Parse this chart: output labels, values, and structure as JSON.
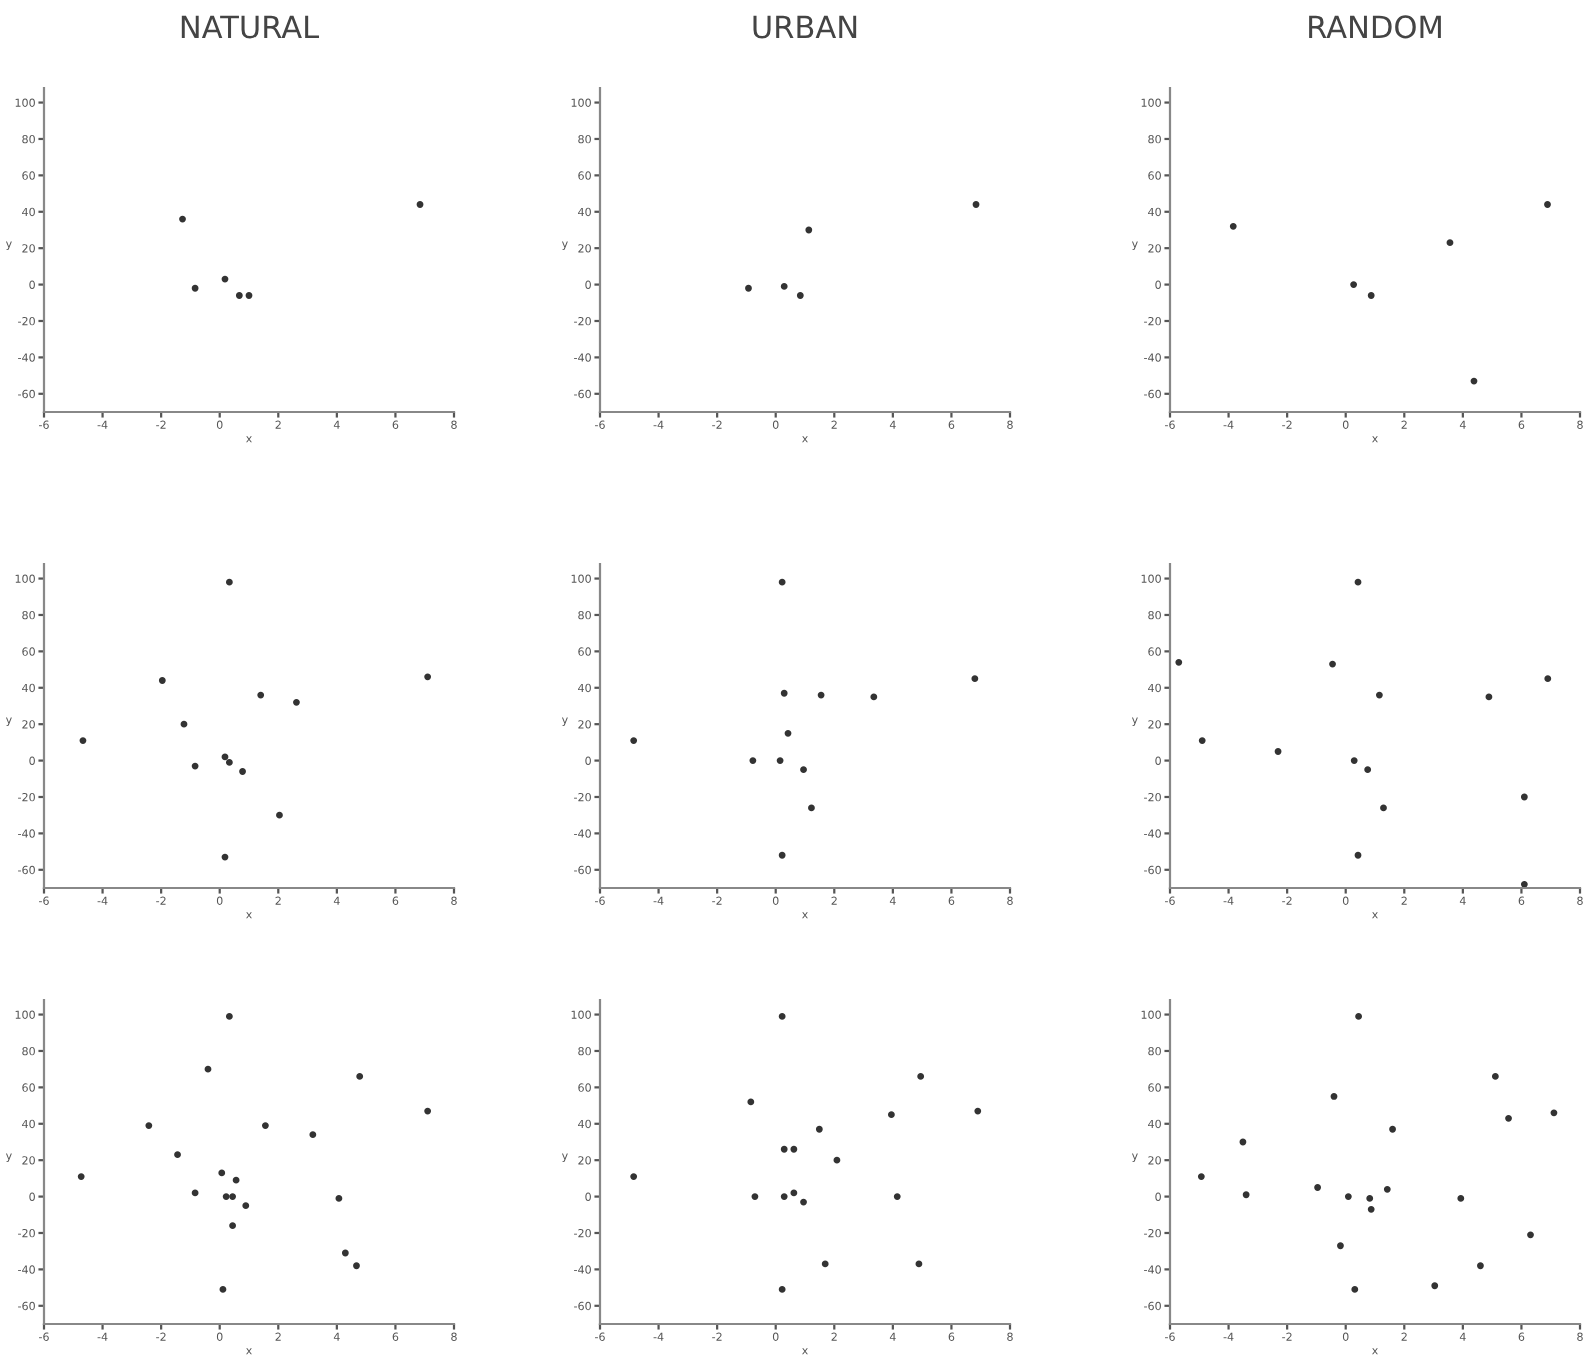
{
  "chart_data": [
    {
      "type": "scatter",
      "title": "NATURAL",
      "xlabel": "x",
      "ylabel": "y",
      "color": "#333333",
      "marker": "circle",
      "xlim": [
        -6,
        8
      ],
      "ylim": [
        -70,
        108
      ],
      "xticks": [
        -6,
        -4,
        -2,
        0,
        2,
        4,
        6,
        8
      ],
      "yticks": [
        -60,
        -40,
        -20,
        0,
        20,
        40,
        60,
        80,
        100
      ],
      "x": [
        -1.27,
        -0.84,
        0.18,
        0.67,
        1.0,
        6.84
      ],
      "values": [
        36,
        -2,
        3,
        -6,
        -6,
        44
      ]
    },
    {
      "type": "scatter",
      "title": "URBAN",
      "xlabel": "x",
      "ylabel": "y",
      "color": "#333333",
      "marker": "circle",
      "xlim": [
        -6,
        8
      ],
      "ylim": [
        -70,
        108
      ],
      "xticks": [
        -6,
        -4,
        -2,
        0,
        2,
        4,
        6,
        8
      ],
      "yticks": [
        -60,
        -40,
        -20,
        0,
        20,
        40,
        60,
        80,
        100
      ],
      "x": [
        -0.93,
        0.29,
        0.84,
        1.13,
        6.84
      ],
      "values": [
        -2,
        -1,
        -6,
        30,
        44
      ]
    },
    {
      "type": "scatter",
      "title": "RANDOM",
      "xlabel": "x",
      "ylabel": "y",
      "color": "#333333",
      "marker": "circle",
      "xlim": [
        -6,
        8
      ],
      "ylim": [
        -70,
        108
      ],
      "xticks": [
        -6,
        -4,
        -2,
        0,
        2,
        4,
        6,
        8
      ],
      "yticks": [
        -60,
        -40,
        -20,
        0,
        20,
        40,
        60,
        80,
        100
      ],
      "x": [
        -3.84,
        0.27,
        0.87,
        3.56,
        4.38,
        6.89
      ],
      "values": [
        32,
        0,
        -6,
        23,
        -53,
        44
      ]
    },
    {
      "type": "scatter",
      "xlabel": "x",
      "ylabel": "y",
      "color": "#333333",
      "marker": "circle",
      "xlim": [
        -6,
        8
      ],
      "ylim": [
        -70,
        108
      ],
      "xticks": [
        -6,
        -4,
        -2,
        0,
        2,
        4,
        6,
        8
      ],
      "yticks": [
        -60,
        -40,
        -20,
        0,
        20,
        40,
        60,
        80,
        100
      ],
      "x": [
        -4.67,
        -1.96,
        -1.22,
        -0.84,
        0.18,
        0.33,
        0.78,
        0.33,
        1.4,
        2.62,
        2.04,
        0.18,
        7.1
      ],
      "values": [
        11,
        44,
        20,
        -3,
        2,
        -1,
        -6,
        98,
        36,
        32,
        -30,
        -53,
        46
      ]
    },
    {
      "type": "scatter",
      "xlabel": "x",
      "ylabel": "y",
      "color": "#333333",
      "marker": "circle",
      "xlim": [
        -6,
        8
      ],
      "ylim": [
        -70,
        108
      ],
      "xticks": [
        -6,
        -4,
        -2,
        0,
        2,
        4,
        6,
        8
      ],
      "yticks": [
        -60,
        -40,
        -20,
        0,
        20,
        40,
        60,
        80,
        100
      ],
      "x": [
        -4.85,
        -0.78,
        0.15,
        0.42,
        0.29,
        0.95,
        1.55,
        3.35,
        1.22,
        0.22,
        0.22,
        6.8
      ],
      "values": [
        11,
        0,
        0,
        15,
        37,
        -5,
        36,
        35,
        -26,
        -52,
        98,
        45
      ]
    },
    {
      "type": "scatter",
      "xlabel": "x",
      "ylabel": "y",
      "color": "#333333",
      "marker": "circle",
      "xlim": [
        -6,
        8
      ],
      "ylim": [
        -70,
        108
      ],
      "xticks": [
        -6,
        -4,
        -2,
        0,
        2,
        4,
        6,
        8
      ],
      "yticks": [
        -60,
        -40,
        -20,
        0,
        20,
        40,
        60,
        80,
        100
      ],
      "x": [
        -4.9,
        -2.31,
        -0.45,
        -5.7,
        0.29,
        0.75,
        1.15,
        1.29,
        4.89,
        6.1,
        6.1,
        0.42,
        0.42,
        6.9
      ],
      "values": [
        11,
        5,
        53,
        54,
        0,
        -5,
        36,
        -26,
        35,
        -20,
        -68,
        -52,
        98,
        45
      ]
    },
    {
      "type": "scatter",
      "xlabel": "x",
      "ylabel": "y",
      "color": "#333333",
      "marker": "circle",
      "xlim": [
        -6,
        8
      ],
      "ylim": [
        -70,
        108
      ],
      "xticks": [
        -6,
        -4,
        -2,
        0,
        2,
        4,
        6,
        8
      ],
      "yticks": [
        -60,
        -40,
        -20,
        0,
        20,
        40,
        60,
        80,
        100
      ],
      "x": [
        -4.73,
        -2.42,
        -1.44,
        -0.84,
        -0.4,
        0.07,
        0.56,
        0.22,
        0.44,
        0.89,
        0.44,
        0.33,
        1.56,
        3.18,
        4.07,
        4.29,
        4.67,
        4.78,
        7.1,
        0.11
      ],
      "values": [
        11,
        39,
        23,
        2,
        70,
        13,
        9,
        0,
        0,
        -5,
        -16,
        99,
        39,
        34,
        -1,
        -31,
        -38,
        66,
        47,
        -51
      ]
    },
    {
      "type": "scatter",
      "xlabel": "x",
      "ylabel": "y",
      "color": "#333333",
      "marker": "circle",
      "xlim": [
        -6,
        8
      ],
      "ylim": [
        -70,
        108
      ],
      "xticks": [
        -6,
        -4,
        -2,
        0,
        2,
        4,
        6,
        8
      ],
      "yticks": [
        -60,
        -40,
        -20,
        0,
        20,
        40,
        60,
        80,
        100
      ],
      "x": [
        -4.85,
        -0.85,
        -0.71,
        0.29,
        0.62,
        0.29,
        0.62,
        0.95,
        1.49,
        2.09,
        3.95,
        4.15,
        1.69,
        4.89,
        4.95,
        6.9,
        0.22,
        0.22
      ],
      "values": [
        11,
        52,
        0,
        26,
        26,
        0,
        2,
        -3,
        37,
        20,
        45,
        0,
        -37,
        -37,
        66,
        47,
        -51,
        99
      ]
    },
    {
      "type": "scatter",
      "xlabel": "x",
      "ylabel": "y",
      "color": "#333333",
      "marker": "circle",
      "xlim": [
        -6,
        8
      ],
      "ylim": [
        -70,
        108
      ],
      "xticks": [
        -6,
        -4,
        -2,
        0,
        2,
        4,
        6,
        8
      ],
      "yticks": [
        -60,
        -40,
        -20,
        0,
        20,
        40,
        60,
        80,
        100
      ],
      "x": [
        -4.93,
        -3.51,
        -3.4,
        -0.96,
        -0.4,
        0.09,
        0.82,
        0.87,
        1.42,
        1.6,
        -0.18,
        0.31,
        0.44,
        3.04,
        3.93,
        4.6,
        5.11,
        5.56,
        6.31,
        7.11
      ],
      "values": [
        11,
        30,
        1,
        5,
        55,
        0,
        -1,
        -7,
        4,
        37,
        -27,
        -51,
        99,
        -49,
        -1,
        -38,
        66,
        43,
        -21,
        46
      ]
    }
  ]
}
